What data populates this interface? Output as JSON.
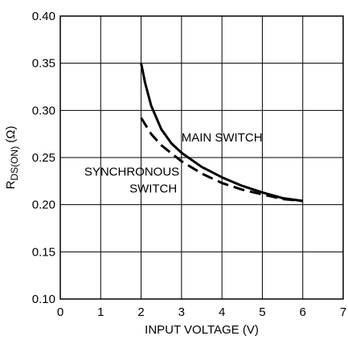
{
  "chart_data": {
    "type": "line",
    "title": "",
    "xlabel": "INPUT VOLTAGE (V)",
    "ylabel": {
      "main": "R",
      "subscript": "DS(ON)",
      "unit": " (Ω)"
    },
    "xlim": [
      0,
      7
    ],
    "ylim": [
      0.1,
      0.4
    ],
    "x_ticks": [
      0,
      1,
      2,
      3,
      4,
      5,
      6,
      7
    ],
    "x_tick_labels": [
      "0",
      "1",
      "2",
      "3",
      "4",
      "5",
      "6",
      "7"
    ],
    "y_ticks": [
      0.1,
      0.15,
      0.2,
      0.25,
      0.3,
      0.35,
      0.4
    ],
    "y_tick_labels": [
      "0.10",
      "0.15",
      "0.20",
      "0.25",
      "0.30",
      "0.35",
      "0.40"
    ],
    "grid": true,
    "series": [
      {
        "name": "MAIN SWITCH",
        "style": "solid",
        "color": "#000000",
        "x": [
          2.0,
          2.1,
          2.25,
          2.5,
          2.75,
          3.0,
          3.5,
          4.0,
          4.5,
          5.0,
          5.5,
          6.0
        ],
        "y": [
          0.35,
          0.329,
          0.305,
          0.28,
          0.265,
          0.255,
          0.24,
          0.229,
          0.22,
          0.213,
          0.207,
          0.204
        ]
      },
      {
        "name": "SYNCHRONOUS SWITCH",
        "style": "dashed",
        "color": "#000000",
        "x": [
          2.0,
          2.25,
          2.5,
          3.0,
          3.5,
          4.0,
          4.5,
          5.0,
          5.5,
          6.0
        ],
        "y": [
          0.292,
          0.275,
          0.263,
          0.246,
          0.233,
          0.223,
          0.216,
          0.211,
          0.206,
          0.204
        ]
      }
    ],
    "annotations": [
      {
        "text": "MAIN SWITCH",
        "x": 4.0,
        "y": 0.267
      },
      {
        "text": "SYNCHRONOUS",
        "x": 1.77,
        "y": 0.231
      },
      {
        "text": "SWITCH",
        "x": 2.3,
        "y": 0.213
      }
    ]
  }
}
